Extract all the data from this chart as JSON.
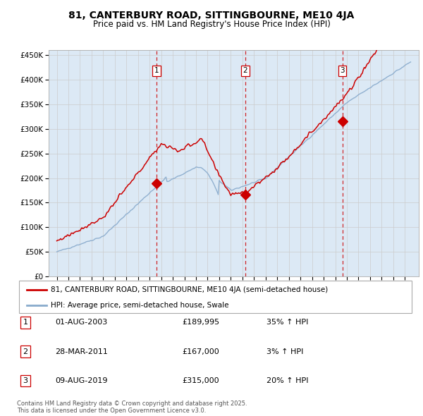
{
  "title": "81, CANTERBURY ROAD, SITTINGBOURNE, ME10 4JA",
  "subtitle": "Price paid vs. HM Land Registry's House Price Index (HPI)",
  "plot_bg_color": "#dce9f5",
  "ylim": [
    0,
    460000
  ],
  "yticks": [
    0,
    50000,
    100000,
    150000,
    200000,
    250000,
    300000,
    350000,
    400000,
    450000
  ],
  "sale_dates": [
    2003.583,
    2011.233,
    2019.608
  ],
  "sale_prices": [
    189995,
    167000,
    315000
  ],
  "sale_labels": [
    "1",
    "2",
    "3"
  ],
  "legend_red": "81, CANTERBURY ROAD, SITTINGBOURNE, ME10 4JA (semi-detached house)",
  "legend_blue": "HPI: Average price, semi-detached house, Swale",
  "table_rows": [
    [
      "1",
      "01-AUG-2003",
      "£189,995",
      "35% ↑ HPI"
    ],
    [
      "2",
      "28-MAR-2011",
      "£167,000",
      "3% ↑ HPI"
    ],
    [
      "3",
      "09-AUG-2019",
      "£315,000",
      "20% ↑ HPI"
    ]
  ],
  "footer": "Contains HM Land Registry data © Crown copyright and database right 2025.\nThis data is licensed under the Open Government Licence v3.0.",
  "red_color": "#cc0000",
  "blue_color": "#88aacc",
  "vline_color": "#cc0000",
  "grid_color": "#cccccc"
}
